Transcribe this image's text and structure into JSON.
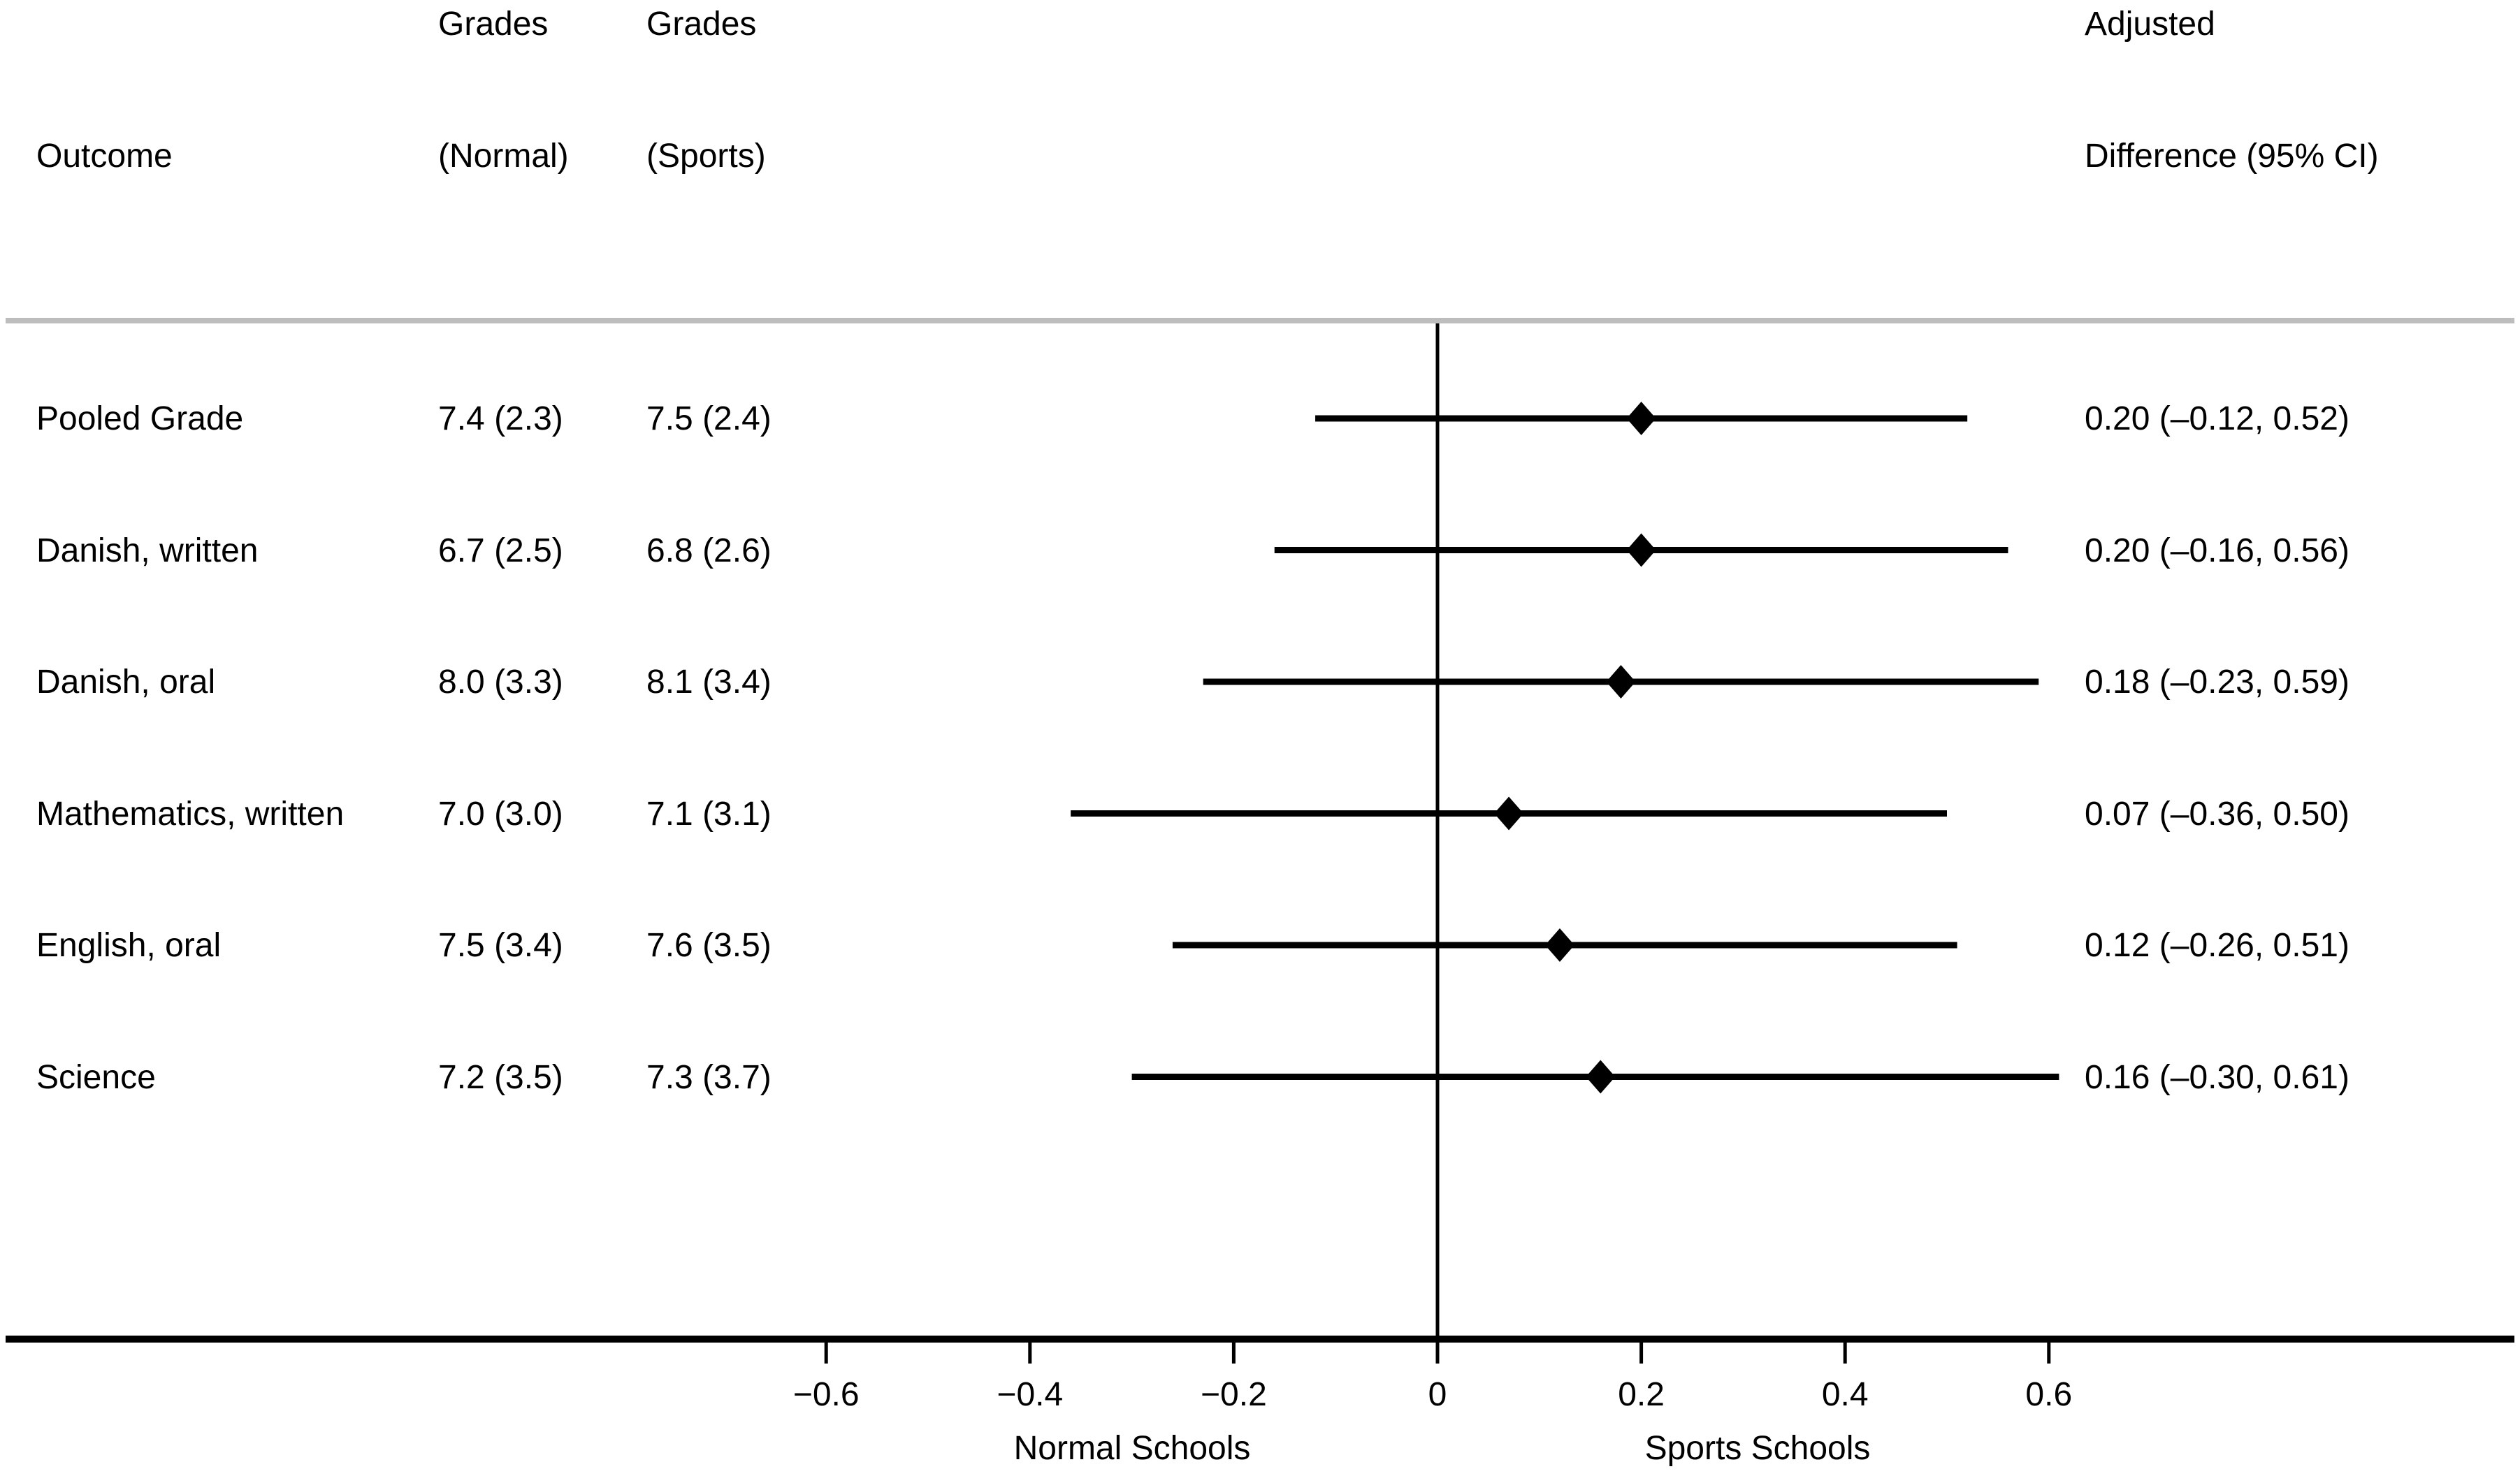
{
  "chart_data": {
    "type": "scatter",
    "subtype": "forest_plot",
    "title": "",
    "background_color": "#ffffff",
    "grid": false,
    "legend": null,
    "columns": {
      "outcome": {
        "line1": "",
        "line2": "Outcome"
      },
      "grades_normal": {
        "line1": "Grades",
        "line2": "(Normal)"
      },
      "grades_sports": {
        "line1": "Grades",
        "line2": "(Sports)"
      },
      "difference": {
        "line1": "Adjusted",
        "line2": "Difference (95% CI)"
      }
    },
    "rows": [
      {
        "outcome": "Pooled Grade",
        "grades_normal": "7.4 (2.3)",
        "grades_sports": "7.5 (2.4)",
        "difference_text": "0.20 (–0.12, 0.52)",
        "estimate": 0.2,
        "ci_lower": -0.12,
        "ci_upper": 0.52
      },
      {
        "outcome": "Danish, written",
        "grades_normal": "6.7 (2.5)",
        "grades_sports": "6.8 (2.6)",
        "difference_text": "0.20 (–0.16, 0.56)",
        "estimate": 0.2,
        "ci_lower": -0.16,
        "ci_upper": 0.56
      },
      {
        "outcome": "Danish, oral",
        "grades_normal": "8.0 (3.3)",
        "grades_sports": "8.1 (3.4)",
        "difference_text": "0.18 (–0.23, 0.59)",
        "estimate": 0.18,
        "ci_lower": -0.23,
        "ci_upper": 0.59
      },
      {
        "outcome": "Mathematics, written",
        "grades_normal": "7.0 (3.0)",
        "grades_sports": "7.1 (3.1)",
        "difference_text": "0.07 (–0.36, 0.50)",
        "estimate": 0.07,
        "ci_lower": -0.36,
        "ci_upper": 0.5
      },
      {
        "outcome": "English, oral",
        "grades_normal": "7.5 (3.4)",
        "grades_sports": "7.6 (3.5)",
        "difference_text": "0.12 (–0.26, 0.51)",
        "estimate": 0.12,
        "ci_lower": -0.26,
        "ci_upper": 0.51
      },
      {
        "outcome": "Science",
        "grades_normal": "7.2 (3.5)",
        "grades_sports": "7.3 (3.7)",
        "difference_text": "0.16 (–0.30, 0.61)",
        "estimate": 0.16,
        "ci_lower": -0.3,
        "ci_upper": 0.61
      }
    ],
    "x_axis": {
      "ticks": [
        -0.6,
        -0.4,
        -0.2,
        0,
        0.2,
        0.4,
        0.6
      ],
      "tick_labels": [
        "−0.6",
        "−0.4",
        "−0.2",
        "0",
        "0.2",
        "0.4",
        "0.6"
      ],
      "range_shown": [
        -0.6,
        0.6
      ],
      "reference_line_x": 0,
      "left_direction_label": "Normal Schools",
      "right_direction_label": "Sports Schools"
    },
    "marker": "diamond",
    "colors": {
      "marker": "#000000",
      "ci_line": "#000000",
      "axis": "#000000",
      "text": "#000000",
      "separator_line": "#bdbdbd",
      "background": "#ffffff"
    }
  }
}
